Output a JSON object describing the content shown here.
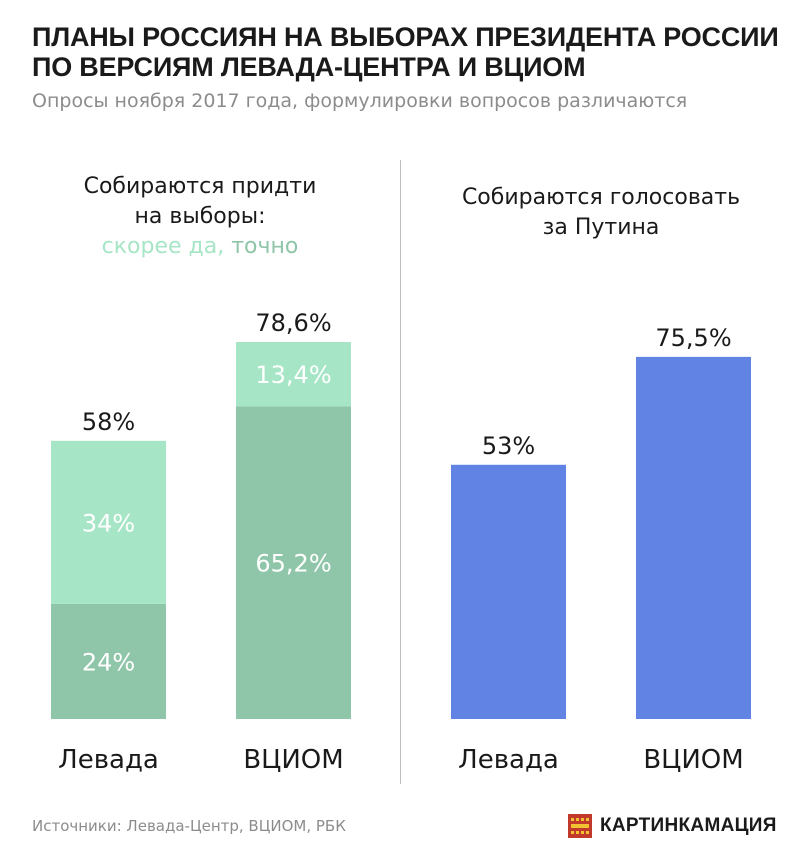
{
  "title_lines": [
    "ПЛАНЫ РОССИЯН НА ВЫБОРАХ ПРЕЗИДЕНТА РОССИИ",
    "ПО ВЕРСИЯМ ЛЕВАДА-ЦЕНТРА И ВЦИОМ"
  ],
  "subtitle": "Опросы ноября 2017 года, формулировки вопросов различаются",
  "colors": {
    "likely": "#a6e6c6",
    "sure": "#8fc6a9",
    "putin": "#6183e3",
    "divider": "#bdbdbd",
    "label_light": "#ffffff",
    "logo_red": "#c0392b",
    "logo_yellow": "#f2c230"
  },
  "panels": [
    {
      "heading_lines": [
        "Собираются придти",
        "на выборы:"
      ],
      "legend": {
        "likely": "скорее да,",
        "sure": "точно"
      }
    },
    {
      "heading_lines": [
        "Собираются голосовать",
        "за Путина"
      ]
    }
  ],
  "chart_data": [
    {
      "type": "bar",
      "stacked": true,
      "title": "Собираются придти на выборы:",
      "categories": [
        "Левада",
        "ВЦИОМ"
      ],
      "series": [
        {
          "name": "точно",
          "values": [
            24,
            65.2
          ],
          "labels": [
            "24%",
            "65,2%"
          ]
        },
        {
          "name": "скорее да",
          "values": [
            34,
            13.4
          ],
          "labels": [
            "34%",
            "13,4%"
          ]
        }
      ],
      "totals": [
        58,
        78.6
      ],
      "total_labels": [
        "58%",
        "78,6%"
      ],
      "ylim": [
        0,
        100
      ],
      "grid": false
    },
    {
      "type": "bar",
      "title": "Собираются голосовать за Путина",
      "categories": [
        "Левада",
        "ВЦИОМ"
      ],
      "values": [
        53,
        75.5
      ],
      "value_labels": [
        "53%",
        "75,5%"
      ],
      "ylim": [
        0,
        100
      ],
      "grid": false
    }
  ],
  "footer": {
    "source": "Источники: Левада-Центр, ВЦИОМ, РБК",
    "brand": "КАРТИНКАМАЦИЯ",
    "brand_logo_icon": "film-strip-logo-icon"
  }
}
